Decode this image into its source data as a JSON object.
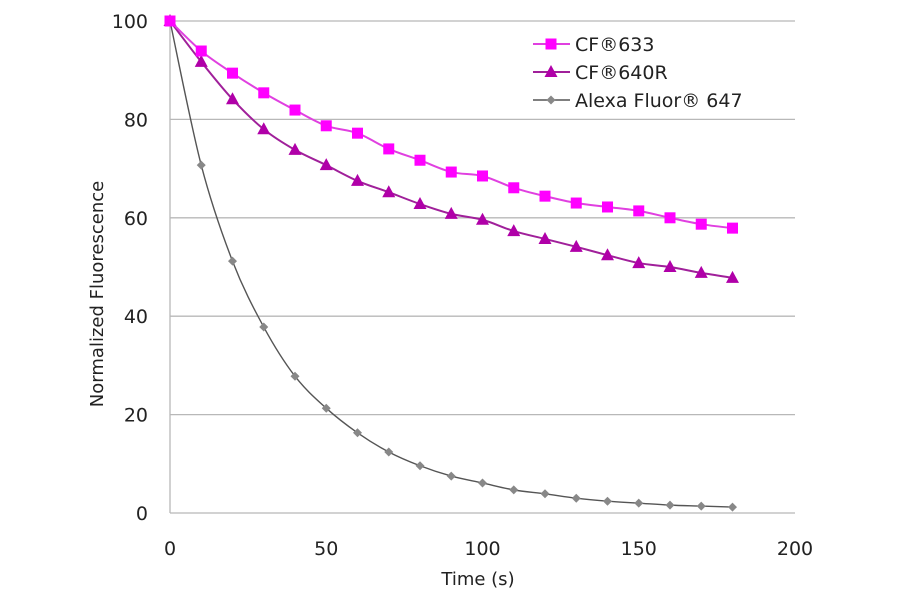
{
  "chart_data": {
    "type": "line",
    "title": "",
    "xlabel": "Time (s)",
    "ylabel": "Normalized Fluorescence",
    "xlim": [
      0,
      200
    ],
    "ylim": [
      0,
      100
    ],
    "xticks": [
      0,
      50,
      100,
      150,
      200
    ],
    "yticks": [
      0,
      20,
      40,
      60,
      80,
      100
    ],
    "grid": "horizontal",
    "legend_position": "top-right",
    "x": [
      0,
      10,
      20,
      30,
      40,
      50,
      60,
      70,
      80,
      90,
      100,
      110,
      120,
      130,
      140,
      150,
      160,
      170,
      180
    ],
    "series": [
      {
        "name": "CF®633",
        "color": "#ff00ff",
        "line_color": "#e040e0",
        "marker": "square",
        "values": [
          100,
          93.9,
          89.4,
          85.4,
          81.9,
          78.7,
          77.2,
          74.0,
          71.7,
          69.3,
          68.5,
          66.1,
          64.4,
          63.0,
          62.2,
          61.4,
          60.0,
          58.7,
          57.9
        ]
      },
      {
        "name": "CF®640R",
        "color": "#b000a8",
        "line_color": "#a0209a",
        "marker": "triangle",
        "values": [
          100,
          91.7,
          84.1,
          78.0,
          73.8,
          70.7,
          67.5,
          65.2,
          62.8,
          60.8,
          59.6,
          57.3,
          55.7,
          54.1,
          52.4,
          50.8,
          50.0,
          48.8,
          47.8
        ]
      },
      {
        "name": "Alexa Fluor®  647",
        "color": "#888888",
        "line_color": "#555555",
        "marker": "diamond",
        "values": [
          100,
          70.7,
          51.2,
          37.8,
          27.8,
          21.3,
          16.3,
          12.4,
          9.6,
          7.5,
          6.1,
          4.7,
          3.9,
          3.0,
          2.4,
          2.0,
          1.6,
          1.4,
          1.2
        ]
      }
    ]
  }
}
